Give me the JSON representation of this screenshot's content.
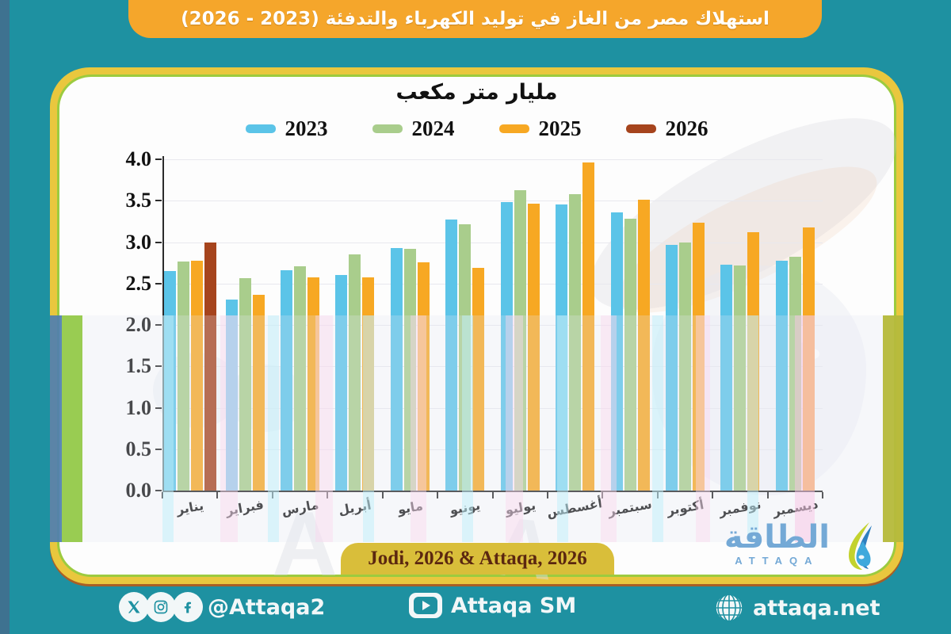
{
  "header": {
    "title": "استهلاك مصر من الغاز في توليد الكهرباء والتدفئة (2023 - 2026)"
  },
  "chart_data": {
    "type": "bar",
    "title": "مليار متر مكعب",
    "categories": [
      "يناير",
      "فبراير",
      "مارس",
      "أبريل",
      "مايو",
      "يونيو",
      "يوليو",
      "أغسطس",
      "سبتمبر",
      "أكتوبر",
      "نوفمبر",
      "ديسمبر"
    ],
    "series": [
      {
        "name": "2023",
        "color": "#5BC4E8",
        "values": [
          2.65,
          2.31,
          2.66,
          2.6,
          2.93,
          3.27,
          3.48,
          3.45,
          3.36,
          2.97,
          2.73,
          2.78
        ]
      },
      {
        "name": "2024",
        "color": "#A9CD8C",
        "values": [
          2.77,
          2.56,
          2.71,
          2.85,
          2.92,
          3.22,
          3.63,
          3.58,
          3.28,
          3.0,
          2.72,
          2.82
        ]
      },
      {
        "name": "2025",
        "color": "#F7A823",
        "values": [
          2.78,
          2.36,
          2.57,
          2.57,
          2.76,
          2.69,
          3.46,
          3.96,
          3.51,
          3.23,
          3.12,
          3.18
        ]
      },
      {
        "name": "2026",
        "color": "#A6441D",
        "values": [
          3.0,
          null,
          null,
          null,
          null,
          null,
          null,
          null,
          null,
          null,
          null,
          null
        ]
      }
    ],
    "ylim": [
      0,
      4
    ],
    "ytick_step": 0.5,
    "grid": true,
    "legend_position": "top"
  },
  "source_badge": {
    "text": "Jodi, 2026 & Attaqa, 2026"
  },
  "logo": {
    "arabic": "الطاقة",
    "latin": "ATTAQA"
  },
  "footer": {
    "social_handle": "@Attaqa2",
    "youtube_label": "Attaqa SM",
    "website": "attaqa.net"
  },
  "colors": {
    "page_background": "#1E91A1",
    "header_background": "#F5A62B",
    "card_border_gold": "#E9C73E",
    "card_accent_green": "#9CCB3F",
    "badge_background": "#D9BE3A",
    "badge_text": "#5B2710",
    "logo_blue": "#74A9D6",
    "axis_text": "#111111"
  }
}
